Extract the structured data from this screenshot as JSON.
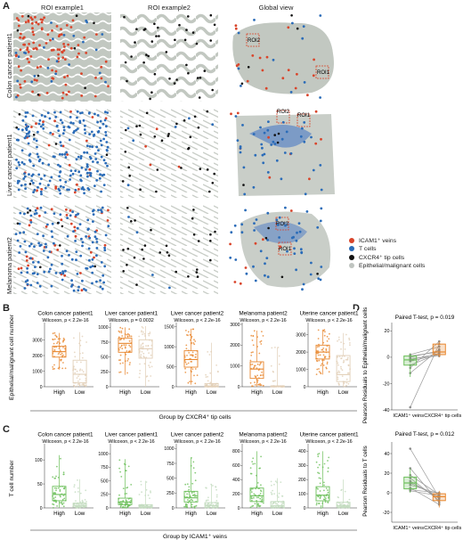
{
  "panels": {
    "a": "A",
    "b": "B",
    "c": "C",
    "d": "D"
  },
  "panel_a": {
    "col_titles": [
      "ROI example1",
      "ROI example2",
      "Global view"
    ],
    "row_labels": [
      "Colon cancer patient1",
      "Liver cancer patient1",
      "Melanoma patient2"
    ],
    "roi_labels": [
      [
        "ROI2",
        "ROI1"
      ],
      [
        "ROI2",
        "ROI1"
      ],
      [
        "ROI2",
        "ROI1"
      ]
    ],
    "legend": [
      {
        "label": "ICAM1⁺ veins",
        "color": "#d9452b"
      },
      {
        "label": "T cells",
        "color": "#2b6cb8"
      },
      {
        "label": "CXCR4⁺ tip cells",
        "color": "#111111"
      },
      {
        "label": "Epithelial/malignant cells",
        "color": "#bfc4c0"
      }
    ]
  },
  "chart_data": [
    {
      "type": "box",
      "panel": "B",
      "ylabel": "Epithelial/malignant cell number",
      "xlabel": "Group by CXCR4⁺ tip cells",
      "categories": [
        "High",
        "Low"
      ],
      "colors": {
        "High": "#e8872e",
        "Low": "#e2cfb8"
      },
      "subplots": [
        {
          "title": "Colon cancer patient1",
          "stat": "Wilcoxon, p < 2.2e-16",
          "ylim": [
            0,
            4000
          ],
          "yticks": [
            0,
            1000,
            2000,
            3000
          ],
          "high": {
            "min": 1100,
            "q1": 1900,
            "median": 2250,
            "q3": 2600,
            "max": 3450
          },
          "low": {
            "min": 0,
            "q1": 250,
            "median": 800,
            "q3": 1700,
            "max": 3500
          }
        },
        {
          "title": "Liver cancer patient1",
          "stat": "Wilcoxon, p = 0.0032",
          "ylim": [
            0,
            1050
          ],
          "yticks": [
            0,
            250,
            500,
            750,
            1000
          ],
          "high": {
            "min": 200,
            "q1": 580,
            "median": 730,
            "q3": 820,
            "max": 1000
          },
          "low": {
            "min": 0,
            "q1": 480,
            "median": 640,
            "q3": 790,
            "max": 1020
          }
        },
        {
          "title": "Liver cancer patient2",
          "stat": "Wilcoxon, p < 2.2e-16",
          "ylim": [
            0,
            1560
          ],
          "yticks": [
            0,
            500,
            1000,
            1500
          ],
          "high": {
            "min": 50,
            "q1": 490,
            "median": 680,
            "q3": 900,
            "max": 1450
          },
          "low": {
            "min": 0,
            "q1": 0,
            "median": 20,
            "q3": 80,
            "max": 1100
          }
        },
        {
          "title": "Melanoma patient2",
          "stat": "Wilcoxon, p < 2.2e-16",
          "ylim": [
            0,
            3000
          ],
          "yticks": [
            0,
            1000,
            2000,
            3000
          ],
          "high": {
            "min": 0,
            "q1": 400,
            "median": 850,
            "q3": 1200,
            "max": 2700
          },
          "low": {
            "min": 0,
            "q1": 0,
            "median": 10,
            "q3": 40,
            "max": 1900
          }
        },
        {
          "title": "Uterine cancer patient1",
          "stat": "Wilcoxon, p < 2.2e-16",
          "ylim": [
            0,
            3600
          ],
          "yticks": [
            0,
            1000,
            2000,
            3000
          ],
          "high": {
            "min": 700,
            "q1": 1600,
            "median": 2000,
            "q3": 2400,
            "max": 3300
          },
          "low": {
            "min": 0,
            "q1": 300,
            "median": 700,
            "q3": 1800,
            "max": 3100
          }
        }
      ]
    },
    {
      "type": "box",
      "panel": "C",
      "ylabel": "T cell number",
      "xlabel": "Group by ICAM1⁺ veins",
      "categories": [
        "High",
        "Low"
      ],
      "colors": {
        "High": "#6cbf5a",
        "Low": "#c4dcc0"
      },
      "subplots": [
        {
          "title": "Colon cancer patient1",
          "stat": "Wilcoxon, p < 2.2e-16",
          "ylim": [
            0,
            130
          ],
          "yticks": [
            0,
            50,
            100
          ],
          "high": {
            "min": 0,
            "q1": 15,
            "median": 28,
            "q3": 45,
            "max": 110
          },
          "low": {
            "min": 0,
            "q1": 2,
            "median": 5,
            "q3": 10,
            "max": 60
          }
        },
        {
          "title": "Liver cancer patient1",
          "stat": "Wilcoxon, p < 2.2e-16",
          "ylim": [
            0,
            1150
          ],
          "yticks": [
            0,
            250,
            500,
            750,
            1000
          ],
          "high": {
            "min": 0,
            "q1": 60,
            "median": 110,
            "q3": 180,
            "max": 900
          },
          "low": {
            "min": 0,
            "q1": 10,
            "median": 30,
            "q3": 60,
            "max": 500
          }
        },
        {
          "title": "Liver cancer patient2",
          "stat": "Wilcoxon, p < 2.2e-16",
          "ylim": [
            0,
            1050
          ],
          "yticks": [
            0,
            250,
            500,
            750,
            1000
          ],
          "high": {
            "min": 0,
            "q1": 100,
            "median": 170,
            "q3": 280,
            "max": 850
          },
          "low": {
            "min": 0,
            "q1": 10,
            "median": 40,
            "q3": 90,
            "max": 400
          }
        },
        {
          "title": "Melanoma patient2",
          "stat": "Wilcoxon, p < 2.2e-16",
          "ylim": [
            0,
            880
          ],
          "yticks": [
            0,
            200,
            400,
            600,
            800
          ],
          "high": {
            "min": 0,
            "q1": 90,
            "median": 170,
            "q3": 280,
            "max": 800
          },
          "low": {
            "min": 0,
            "q1": 10,
            "median": 30,
            "q3": 90,
            "max": 420
          }
        },
        {
          "title": "Uterine cancer patient1",
          "stat": "Wilcoxon, p < 2.2e-16",
          "ylim": [
            0,
            440
          ],
          "yticks": [
            0,
            100,
            200,
            300,
            400
          ],
          "high": {
            "min": 0,
            "q1": 50,
            "median": 90,
            "q3": 150,
            "max": 400
          },
          "low": {
            "min": 0,
            "q1": 5,
            "median": 15,
            "q3": 40,
            "max": 200
          }
        }
      ]
    },
    {
      "type": "paired-box",
      "panel": "D-top",
      "stat": "Paired T-test, p = 0.019",
      "ylabel": "Pearson Residuals to Epithelial/malignant cells",
      "categories": [
        "ICAM1⁺ veins",
        "CXCR4⁺ tip cells"
      ],
      "ylim": [
        -40,
        25
      ],
      "yticks": [
        -40,
        -20,
        0,
        20
      ],
      "colors": {
        "left": "#6cbf5a",
        "right": "#e8872e"
      },
      "boxes": [
        {
          "min": -15,
          "q1": -6,
          "median": -2,
          "q3": 1,
          "max": 3
        },
        {
          "min": 0,
          "q1": 2,
          "median": 4,
          "q3": 10,
          "max": 12
        }
      ],
      "pairs": [
        [
          -38,
          10
        ],
        [
          -12,
          6
        ],
        [
          -6,
          3
        ],
        [
          -3,
          2
        ],
        [
          -1,
          1
        ],
        [
          0,
          5
        ],
        [
          1,
          4
        ],
        [
          2,
          8
        ],
        [
          -8,
          12
        ],
        [
          -2,
          3
        ]
      ]
    },
    {
      "type": "paired-box",
      "panel": "D-bottom",
      "stat": "Paired T-test, p = 0.012",
      "ylabel": "Pearson Residuals to T cells",
      "categories": [
        "ICAM1⁺ veins",
        "CXCR4⁺ tip cells"
      ],
      "ylim": [
        -30,
        50
      ],
      "yticks": [
        -20,
        0,
        20,
        40
      ],
      "colors": {
        "left": "#6cbf5a",
        "right": "#e8872e"
      },
      "boxes": [
        {
          "min": 0,
          "q1": 4,
          "median": 10,
          "q3": 16,
          "max": 25
        },
        {
          "min": -15,
          "q1": -8,
          "median": -4,
          "q3": -1,
          "max": 2
        }
      ],
      "pairs": [
        [
          45,
          -5
        ],
        [
          25,
          -10
        ],
        [
          18,
          -2
        ],
        [
          15,
          -8
        ],
        [
          10,
          -4
        ],
        [
          8,
          -1
        ],
        [
          5,
          -12
        ],
        [
          3,
          0
        ],
        [
          12,
          -6
        ],
        [
          2,
          -3
        ]
      ]
    }
  ]
}
